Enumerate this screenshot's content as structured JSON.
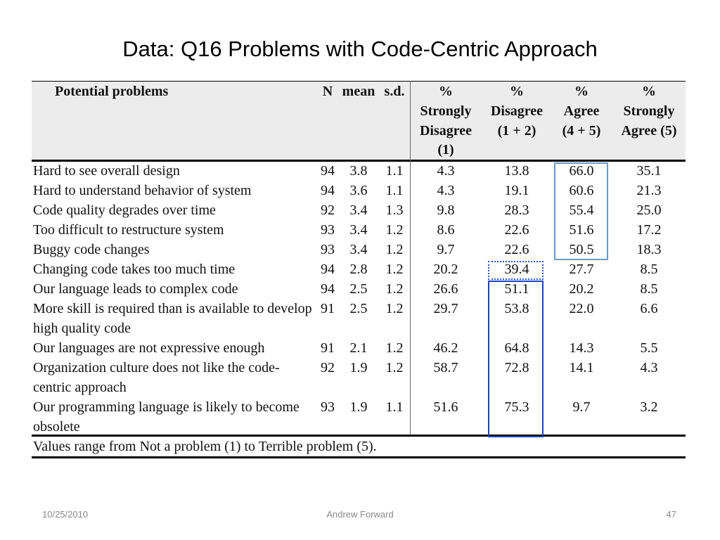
{
  "title": "Data: Q16 Problems with Code-Centric Approach",
  "table": {
    "header": [
      [
        "Potential problems"
      ],
      [
        "N"
      ],
      [
        "mean"
      ],
      [
        "s.d."
      ],
      [
        "%",
        "Strongly",
        "Disagree",
        "(1)"
      ],
      [
        "%",
        "Disagree",
        "(1 + 2)"
      ],
      [
        "%",
        "Agree",
        "(4 + 5)"
      ],
      [
        "%",
        "Strongly",
        "Agree (5)"
      ]
    ],
    "rows": [
      [
        "Hard to see overall design",
        "94",
        "3.8",
        "1.1",
        "4.3",
        "13.8",
        "66.0",
        "35.1"
      ],
      [
        "Hard to understand behavior of system",
        "94",
        "3.6",
        "1.1",
        "4.3",
        "19.1",
        "60.6",
        "21.3"
      ],
      [
        "Code quality degrades over time",
        "92",
        "3.4",
        "1.3",
        "9.8",
        "28.3",
        "55.4",
        "25.0"
      ],
      [
        "Too difficult to restructure system",
        "93",
        "3.4",
        "1.2",
        "8.6",
        "22.6",
        "51.6",
        "17.2"
      ],
      [
        "Buggy code changes",
        "93",
        "3.4",
        "1.2",
        "9.7",
        "22.6",
        "50.5",
        "18.3"
      ],
      [
        "Changing code takes too much time",
        "94",
        "2.8",
        "1.2",
        "20.2",
        "39.4",
        "27.7",
        "8.5"
      ],
      [
        "Our language leads to complex code",
        "94",
        "2.5",
        "1.2",
        "26.6",
        "51.1",
        "20.2",
        "8.5"
      ],
      [
        "More skill is required than is available to develop high quality code",
        "91",
        "2.5",
        "1.2",
        "29.7",
        "53.8",
        "22.0",
        "6.6"
      ],
      [
        "Our languages are not expressive enough",
        "91",
        "2.1",
        "1.2",
        "46.2",
        "64.8",
        "14.3",
        "5.5"
      ],
      [
        "Organization culture does not like the code-centric approach",
        "92",
        "1.9",
        "1.2",
        "58.7",
        "72.8",
        "14.1",
        "4.3"
      ],
      [
        "Our programming language is likely to become obsolete",
        "93",
        "1.9",
        "1.1",
        "51.6",
        "75.3",
        "9.7",
        "3.2"
      ]
    ],
    "note": "Values range from Not a problem (1) to Terrible problem (5)."
  },
  "footer": {
    "date": "10/25/2010",
    "author": "Andrew Forward",
    "page": "47"
  }
}
